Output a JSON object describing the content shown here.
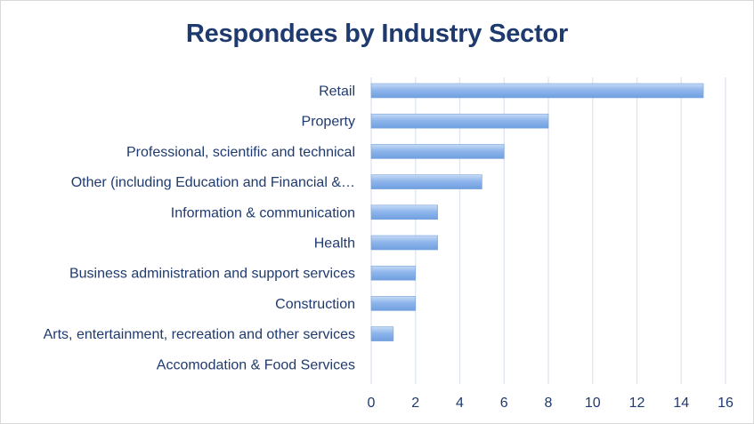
{
  "chart_data": {
    "type": "bar",
    "orientation": "horizontal",
    "title": "Respondees by Industry Sector",
    "categories": [
      "Retail",
      "Property",
      "Professional, scientific and technical",
      "Other (including Education and Financial &…",
      "Information & communication",
      "Health",
      "Business administration and support services",
      "Construction",
      "Arts, entertainment, recreation and other services",
      "Accomodation & Food Services"
    ],
    "values": [
      15,
      8,
      6,
      5,
      3,
      3,
      2,
      2,
      1,
      0
    ],
    "xlim": [
      0,
      16
    ],
    "xticks": [
      "0",
      "2",
      "4",
      "6",
      "8",
      "10",
      "12",
      "14",
      "16"
    ],
    "grid": true,
    "legend": "none",
    "colors": {
      "bar_top": "#c6dbf5",
      "bar_mid": "#8fb6ec",
      "bar_bottom": "#6f9fe0",
      "grid": "#dfe5ee",
      "text": "#1f3a6e"
    }
  }
}
